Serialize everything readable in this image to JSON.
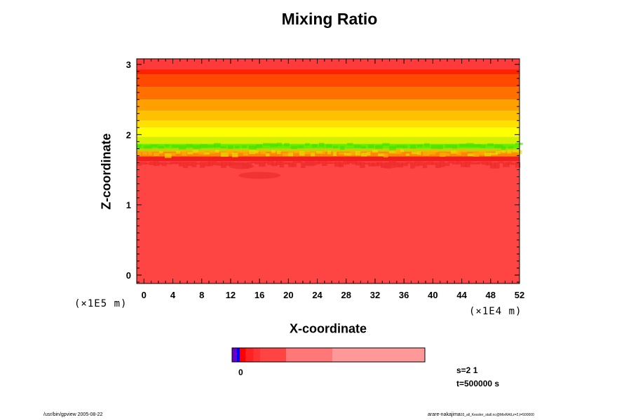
{
  "chart_data": {
    "type": "heatmap",
    "title": "Mixing Ratio",
    "xlabel": "X-coordinate",
    "ylabel": "Z-coordinate",
    "x_unit": "(×1E4 m)",
    "y_unit": "(×1E5 m)",
    "xlim": [
      -1,
      52
    ],
    "ylim": [
      -0.12,
      3.08
    ],
    "x_ticks": [
      "0",
      "4",
      "8",
      "12",
      "16",
      "20",
      "24",
      "28",
      "32",
      "36",
      "40",
      "44",
      "48",
      "52"
    ],
    "x_tick_values": [
      0,
      4,
      8,
      12,
      16,
      20,
      24,
      28,
      32,
      36,
      40,
      44,
      48,
      52
    ],
    "y_ticks": [
      "0",
      "1",
      "2",
      "3"
    ],
    "y_tick_values": [
      0,
      1,
      2,
      3
    ],
    "bands": [
      {
        "z0": -0.12,
        "z1": 1.62,
        "color": "#ff4444"
      },
      {
        "z0": 1.62,
        "z1": 1.69,
        "color": "#f02020"
      },
      {
        "z0": 1.69,
        "z1": 1.76,
        "color": "#ff8800"
      },
      {
        "z0": 1.76,
        "z1": 1.8,
        "color": "#cccc00"
      },
      {
        "z0": 1.8,
        "z1": 1.87,
        "color": "#66ee00"
      },
      {
        "z0": 1.87,
        "z1": 1.97,
        "color": "#d4f000"
      },
      {
        "z0": 1.97,
        "z1": 2.1,
        "color": "#ffff00"
      },
      {
        "z0": 2.1,
        "z1": 2.2,
        "color": "#ffe000"
      },
      {
        "z0": 2.2,
        "z1": 2.34,
        "color": "#ffc000"
      },
      {
        "z0": 2.34,
        "z1": 2.5,
        "color": "#ffa000"
      },
      {
        "z0": 2.5,
        "z1": 2.68,
        "color": "#ff7000"
      },
      {
        "z0": 2.68,
        "z1": 2.86,
        "color": "#ff4800"
      },
      {
        "z0": 2.86,
        "z1": 2.93,
        "color": "#ff2000"
      },
      {
        "z0": 2.93,
        "z1": 3.08,
        "color": "#ff3a3a"
      }
    ],
    "colorbar": {
      "zero_label": "0",
      "segments": [
        {
          "span": 0.025,
          "color": "#6600cc"
        },
        {
          "span": 0.015,
          "color": "#0000ff"
        },
        {
          "span": 0.03,
          "color": "#ff0000"
        },
        {
          "span": 0.04,
          "color": "#ff2222"
        },
        {
          "span": 0.035,
          "color": "#ff3333"
        },
        {
          "span": 0.135,
          "color": "#ff4444"
        },
        {
          "span": 0.24,
          "color": "#ff7777"
        },
        {
          "span": 0.48,
          "color": "#ff9999"
        }
      ]
    }
  },
  "info": {
    "s_label": "s=2 1",
    "t_label": "t=500000 s"
  },
  "footer": {
    "left": "/usr/bin/gpview 2005-08-22",
    "right": "arare-nakajima",
    "right_small": "03_all_Kessler_stall.nc@MixRAll,z=2,t=500000"
  }
}
